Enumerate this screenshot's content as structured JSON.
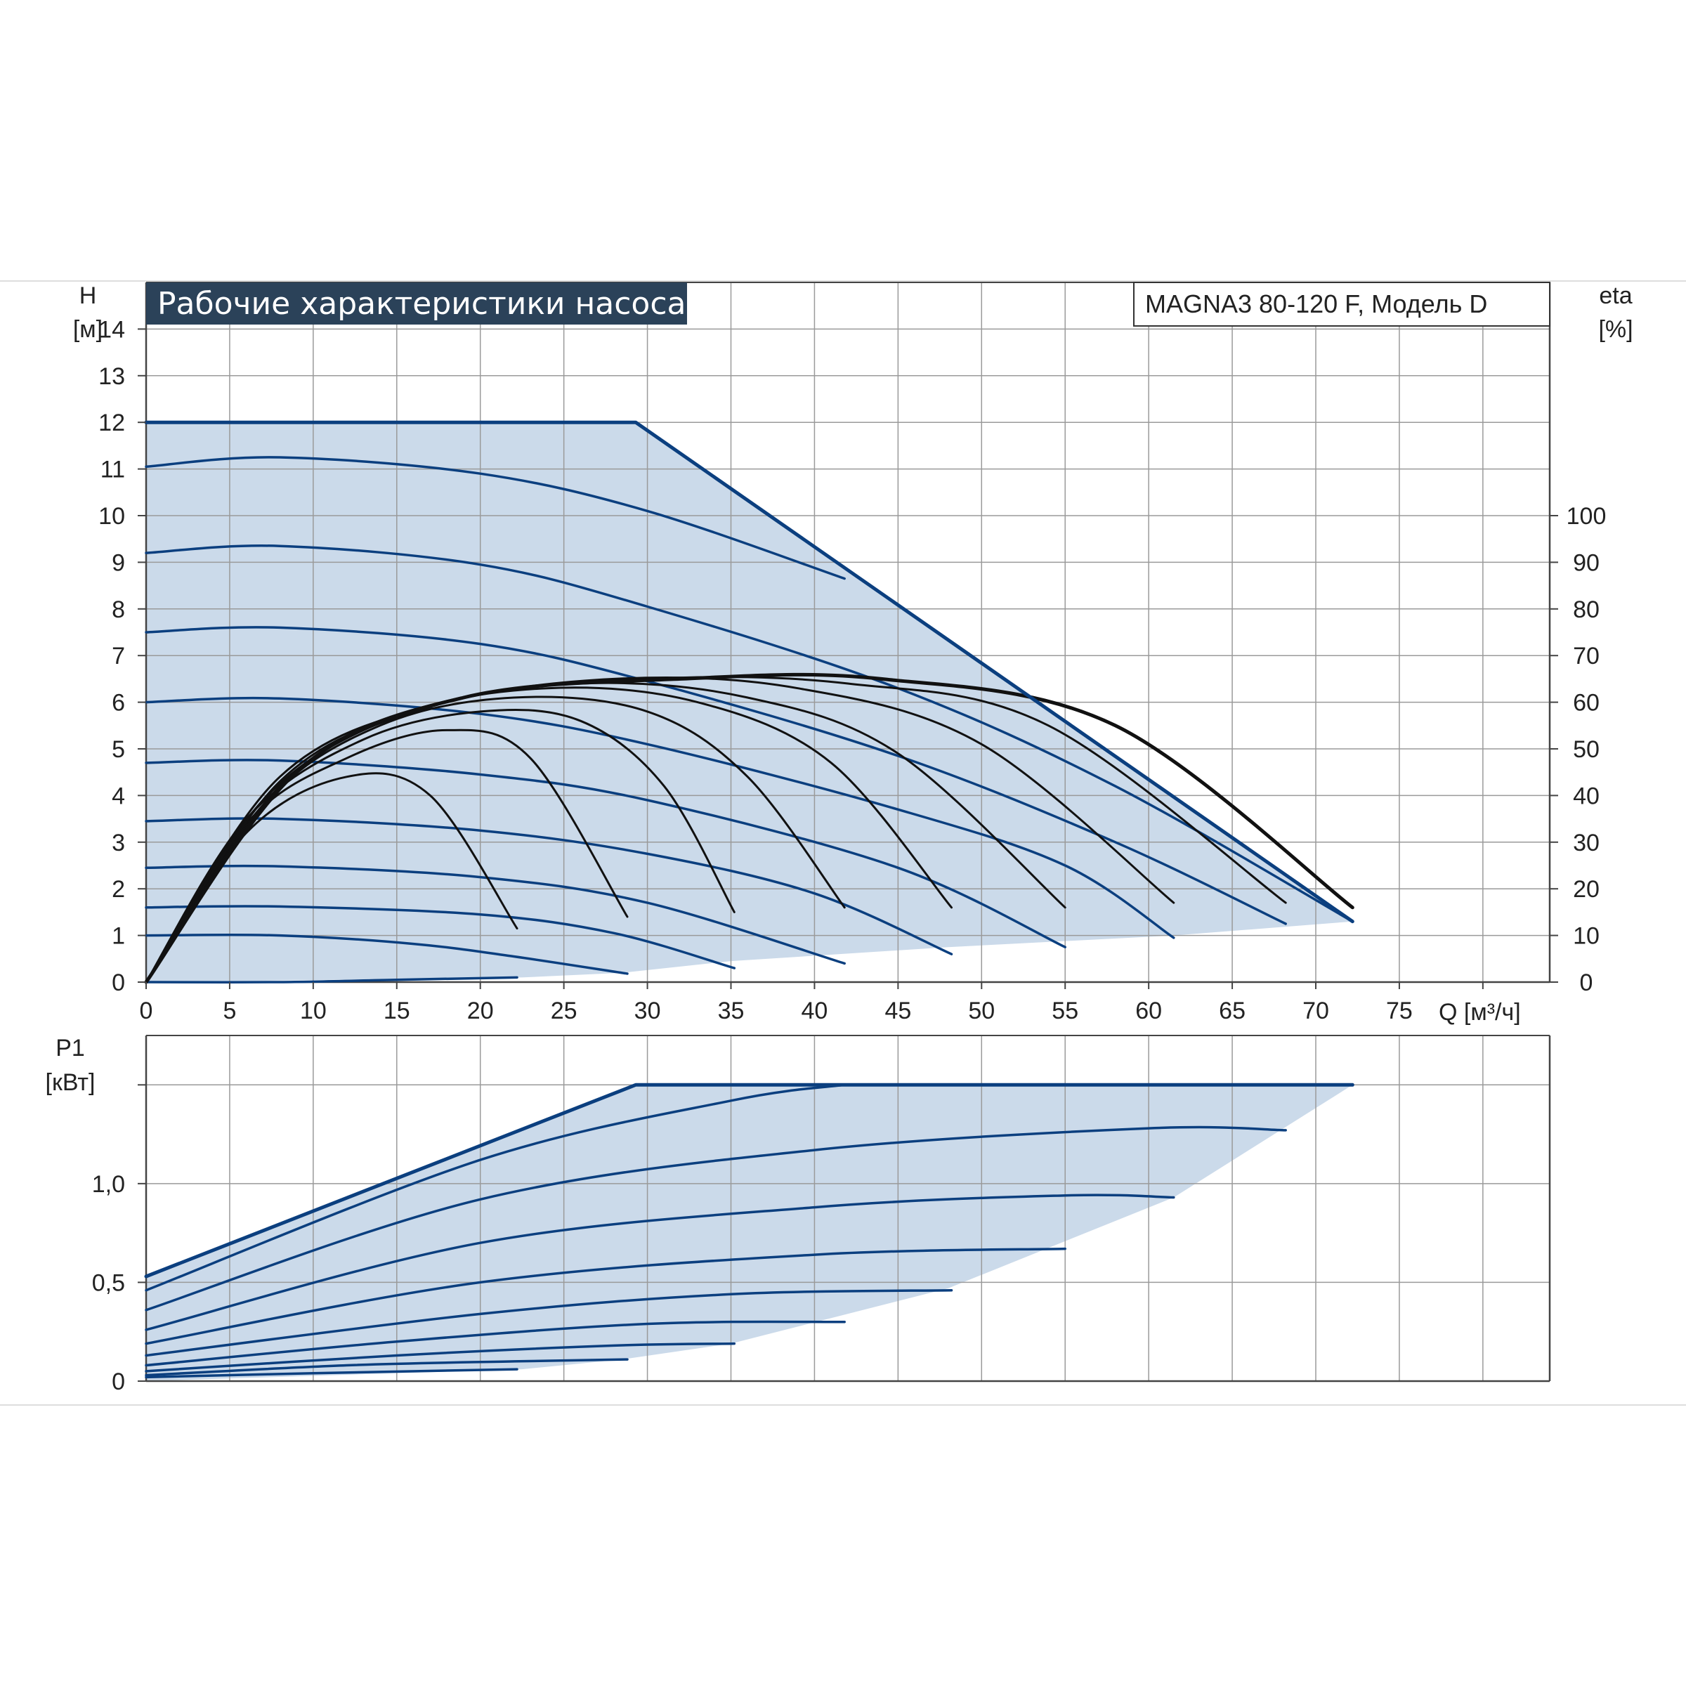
{
  "chart_data": {
    "title": "Рабочие характеристики насоса",
    "model": "MAGNA3 80-120 F, Модель D",
    "colors": {
      "area": "#cbdaea",
      "grid": "#9a9a9a",
      "blue": "#0b3f7f",
      "black": "#111111",
      "title_bg": "#2b4259"
    },
    "head_panel": {
      "type": "line",
      "ylabel_top": "H",
      "ylabel_unit": "[м]",
      "y2label_top": "eta",
      "y2label_unit": "[%]",
      "xlabel": "Q [м³/ч]",
      "xlim": [
        0,
        84
      ],
      "ylim": [
        0,
        15
      ],
      "x_ticks": [
        "0",
        "5",
        "10",
        "15",
        "20",
        "25",
        "30",
        "35",
        "40",
        "45",
        "50",
        "55",
        "60",
        "65",
        "70",
        "75"
      ],
      "y_ticks": [
        "0",
        "1",
        "2",
        "3",
        "4",
        "5",
        "6",
        "7",
        "8",
        "9",
        "10",
        "11",
        "12",
        "13",
        "14"
      ],
      "y2_ticks": [
        "0",
        "10",
        "20",
        "30",
        "40",
        "50",
        "60",
        "70",
        "80",
        "90",
        "100"
      ],
      "area_boundary": [
        [
          0,
          12
        ],
        [
          29.3,
          12
        ],
        [
          72.2,
          1.3
        ],
        [
          61.5,
          1.0
        ],
        [
          48,
          0.75
        ],
        [
          35,
          0.45
        ],
        [
          28.5,
          0.2
        ],
        [
          22.5,
          0.1
        ],
        [
          0,
          0
        ]
      ],
      "max_curve": [
        [
          0,
          12
        ],
        [
          29.3,
          12
        ],
        [
          72.2,
          1.3
        ]
      ],
      "head_curves": [
        [
          [
            0,
            11.05
          ],
          [
            8,
            11.25
          ],
          [
            20,
            10.9
          ],
          [
            30,
            10.1
          ],
          [
            41.8,
            8.65
          ]
        ],
        [
          [
            0,
            9.2
          ],
          [
            8,
            9.35
          ],
          [
            20,
            8.95
          ],
          [
            30,
            8.05
          ],
          [
            45,
            6.3
          ],
          [
            58,
            4.2
          ],
          [
            72.2,
            1.3
          ]
        ],
        [
          [
            0,
            7.5
          ],
          [
            8,
            7.6
          ],
          [
            20,
            7.25
          ],
          [
            30,
            6.45
          ],
          [
            45,
            4.85
          ],
          [
            58,
            3.0
          ],
          [
            68.2,
            1.25
          ]
        ],
        [
          [
            0,
            6.0
          ],
          [
            8,
            6.08
          ],
          [
            20,
            5.75
          ],
          [
            30,
            5.1
          ],
          [
            45,
            3.7
          ],
          [
            55,
            2.5
          ],
          [
            61.5,
            0.95
          ]
        ],
        [
          [
            0,
            4.7
          ],
          [
            8,
            4.75
          ],
          [
            20,
            4.45
          ],
          [
            30,
            3.9
          ],
          [
            45,
            2.45
          ],
          [
            55,
            0.75
          ]
        ],
        [
          [
            0,
            3.45
          ],
          [
            8,
            3.5
          ],
          [
            20,
            3.25
          ],
          [
            30,
            2.75
          ],
          [
            40,
            1.9
          ],
          [
            48.2,
            0.6
          ]
        ],
        [
          [
            0,
            2.45
          ],
          [
            8,
            2.48
          ],
          [
            20,
            2.25
          ],
          [
            30,
            1.7
          ],
          [
            41.8,
            0.4
          ]
        ],
        [
          [
            0,
            1.6
          ],
          [
            8,
            1.62
          ],
          [
            20,
            1.45
          ],
          [
            28,
            1.05
          ],
          [
            35.2,
            0.3
          ]
        ],
        [
          [
            0,
            1.0
          ],
          [
            8,
            1.0
          ],
          [
            16,
            0.82
          ],
          [
            22,
            0.55
          ],
          [
            28.8,
            0.18
          ]
        ],
        [
          [
            0,
            0.0
          ],
          [
            8,
            0.0
          ],
          [
            15,
            0.05
          ],
          [
            22.2,
            0.1
          ]
        ]
      ],
      "eta_curves": [
        [
          [
            0,
            0
          ],
          [
            6,
            32
          ],
          [
            12,
            44
          ],
          [
            17,
            40
          ],
          [
            22.2,
            11.5
          ]
        ],
        [
          [
            0,
            0
          ],
          [
            6,
            34
          ],
          [
            12,
            48
          ],
          [
            18,
            54
          ],
          [
            23,
            48
          ],
          [
            28.8,
            14
          ]
        ],
        [
          [
            0,
            0
          ],
          [
            6,
            35
          ],
          [
            13,
            52
          ],
          [
            20,
            58
          ],
          [
            26,
            56
          ],
          [
            31,
            42
          ],
          [
            35.2,
            15
          ]
        ],
        [
          [
            0,
            0
          ],
          [
            7,
            38
          ],
          [
            14,
            55
          ],
          [
            22,
            61
          ],
          [
            30,
            58
          ],
          [
            36,
            44
          ],
          [
            41.8,
            16
          ]
        ],
        [
          [
            0,
            0
          ],
          [
            7,
            39
          ],
          [
            15,
            57
          ],
          [
            24,
            63
          ],
          [
            33,
            60
          ],
          [
            41,
            47
          ],
          [
            48.2,
            16
          ]
        ],
        [
          [
            0,
            0
          ],
          [
            8,
            42
          ],
          [
            16,
            58
          ],
          [
            26,
            64
          ],
          [
            36,
            61
          ],
          [
            45,
            49
          ],
          [
            55,
            16
          ]
        ],
        [
          [
            0,
            0
          ],
          [
            8,
            43
          ],
          [
            17,
            59
          ],
          [
            28,
            65
          ],
          [
            39,
            63
          ],
          [
            50,
            51
          ],
          [
            61.5,
            17
          ]
        ],
        [
          [
            0,
            0
          ],
          [
            8,
            44
          ],
          [
            18,
            60
          ],
          [
            30,
            65
          ],
          [
            42,
            64
          ],
          [
            54,
            55
          ],
          [
            68.2,
            17
          ]
        ],
        [
          [
            0,
            0
          ],
          [
            9,
            45
          ],
          [
            19,
            61
          ],
          [
            32,
            65
          ],
          [
            44,
            65
          ],
          [
            58,
            55
          ],
          [
            72.2,
            16
          ]
        ]
      ]
    },
    "power_panel": {
      "type": "line",
      "ylabel_top": "P1",
      "ylabel_unit": "[кВт]",
      "xlim": [
        0,
        84
      ],
      "ylim": [
        0,
        1.75
      ],
      "y_ticks": [
        "0",
        "0,5",
        "1,0"
      ],
      "y_tick_values": [
        0,
        0.5,
        1.0
      ],
      "area_boundary": [
        [
          0,
          0.53
        ],
        [
          29.3,
          1.5
        ],
        [
          72.2,
          1.5
        ],
        [
          61.5,
          0.93
        ],
        [
          48,
          0.47
        ],
        [
          35,
          0.19
        ],
        [
          28.5,
          0.11
        ],
        [
          22.5,
          0.06
        ],
        [
          0,
          0
        ]
      ],
      "max_curve": [
        [
          0,
          0.53
        ],
        [
          29.3,
          1.5
        ],
        [
          72.2,
          1.5
        ]
      ],
      "power_curves": [
        [
          [
            0,
            0.46
          ],
          [
            20,
            1.12
          ],
          [
            35,
            1.42
          ],
          [
            41.8,
            1.5
          ]
        ],
        [
          [
            0,
            0.36
          ],
          [
            20,
            0.92
          ],
          [
            40,
            1.17
          ],
          [
            60,
            1.28
          ],
          [
            68.2,
            1.27
          ]
        ],
        [
          [
            0,
            0.26
          ],
          [
            20,
            0.7
          ],
          [
            40,
            0.88
          ],
          [
            55,
            0.94
          ],
          [
            61.5,
            0.93
          ]
        ],
        [
          [
            0,
            0.19
          ],
          [
            20,
            0.5
          ],
          [
            40,
            0.64
          ],
          [
            55,
            0.67
          ]
        ],
        [
          [
            0,
            0.13
          ],
          [
            20,
            0.34
          ],
          [
            35,
            0.44
          ],
          [
            48.2,
            0.46
          ]
        ],
        [
          [
            0,
            0.08
          ],
          [
            15,
            0.2
          ],
          [
            30,
            0.29
          ],
          [
            41.8,
            0.3
          ]
        ],
        [
          [
            0,
            0.05
          ],
          [
            15,
            0.13
          ],
          [
            28,
            0.18
          ],
          [
            35.2,
            0.19
          ]
        ],
        [
          [
            0,
            0.03
          ],
          [
            12,
            0.08
          ],
          [
            22,
            0.1
          ],
          [
            28.8,
            0.11
          ]
        ],
        [
          [
            0,
            0.02
          ],
          [
            10,
            0.04
          ],
          [
            22.2,
            0.06
          ]
        ]
      ]
    }
  }
}
